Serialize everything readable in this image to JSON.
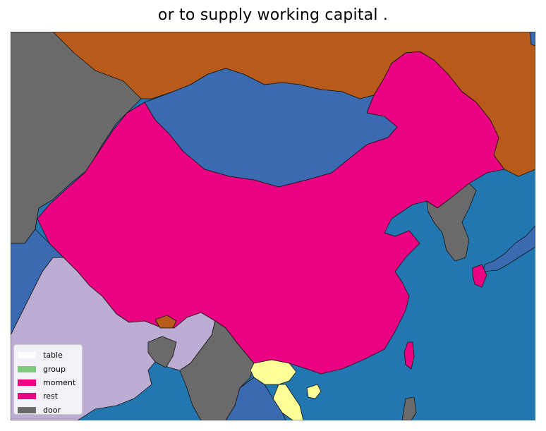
{
  "map": {
    "title": "or to supply working capital .",
    "colors": {
      "ocean": "#2377b0",
      "russia": "#b85b1a",
      "mongolia": "#3a6bb0",
      "china": "#ea0283",
      "neighbor_gray": "#6a6a6a",
      "india": "#bcadd4",
      "myanmar": "#6a6a6a",
      "vietnam_highlight": "#ffff99",
      "blue_land": "#3a6bb0",
      "bhutan": "#b85b1a",
      "border": "#111111"
    },
    "legend": {
      "items": [
        {
          "label": "table",
          "color": "#ffffff"
        },
        {
          "label": "group",
          "color": "#7fc97f"
        },
        {
          "label": "moment",
          "color": "#ea0283"
        },
        {
          "label": "rest",
          "color": "#ea0283"
        },
        {
          "label": "door",
          "color": "#6a6a6a"
        }
      ]
    }
  }
}
